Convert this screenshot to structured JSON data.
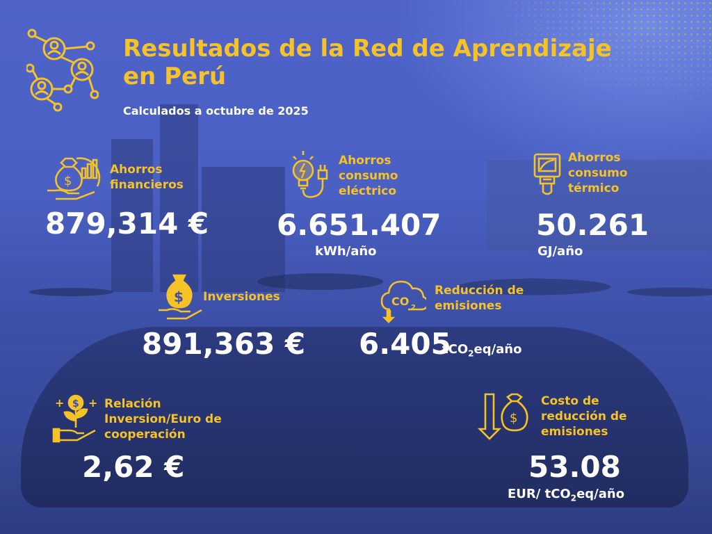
{
  "header": {
    "title": "Resultados de la Red de Aprendizaje en Perú",
    "subtitle": "Calculados a octubre de 2025",
    "icon": "network-people-icon"
  },
  "colors": {
    "accent": "#f5c227",
    "text": "#ffffff",
    "background": "#4a60c3"
  },
  "metrics": {
    "financial": {
      "label": "Ahorros financieros",
      "value": "879,314 €",
      "unit": "",
      "icon": "money-bag-hand-icon"
    },
    "electric": {
      "label": "Ahorros consumo eléctrico",
      "value": "6.651.407",
      "unit": "kWh/año",
      "icon": "lightbulb-plug-icon"
    },
    "thermal": {
      "label": "Ahorros consumo térmico",
      "value": "50.261",
      "unit": "GJ/año",
      "icon": "thermometer-gauge-icon"
    },
    "investments": {
      "label": "Inversiones",
      "value": "891,363 €",
      "unit": "",
      "icon": "money-bag-hand-icon"
    },
    "emissions": {
      "label": "Reducción de emisiones",
      "value": "6.405",
      "unit_prefix": "tCO",
      "unit_sub": "2",
      "unit_suffix": "eq/año",
      "icon": "co2-cloud-icon"
    },
    "ratio": {
      "label": "Relación Inversion/Euro de cooperación",
      "value": "2,62 €",
      "unit": "",
      "icon": "money-plant-hand-icon"
    },
    "cost": {
      "label": "Costo de reducción de emisiones",
      "value": "53.08",
      "unit_prefix": "EUR/ tCO",
      "unit_sub": "2",
      "unit_suffix": "eq/año",
      "icon": "money-bag-down-icon"
    }
  }
}
